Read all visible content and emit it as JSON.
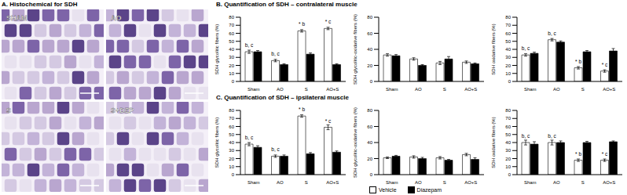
{
  "panel_a": {
    "title": "A. Histochemical for SDH",
    "images": [
      "SHAM",
      "AO",
      "S",
      "S+DZP"
    ]
  },
  "panel_b_title": "B. Quantification of SDH – contralateral muscle",
  "panel_c_title": "C. Quantification of SDH – ipsilateral muscle",
  "chart_data": [
    {
      "type": "bar",
      "y_label": "SDH glycolitic fibers (%)",
      "categories": [
        "Sham",
        "AO",
        "S",
        "AO+S"
      ],
      "series": [
        {
          "name": "Vehicle",
          "color": "#ffffff",
          "values": [
            37,
            26,
            63,
            66
          ],
          "errors": [
            2,
            1.5,
            1.5,
            1.5
          ]
        },
        {
          "name": "Diazepam",
          "color": "#000000",
          "values": [
            37,
            21,
            34,
            21
          ],
          "errors": [
            1.5,
            1,
            1.5,
            1
          ]
        }
      ],
      "ylim": [
        0,
        80
      ],
      "yticks": [
        0,
        10,
        20,
        30,
        40,
        50,
        60,
        70,
        80
      ],
      "legend": "bottom",
      "annotations": [
        {
          "category": "Sham",
          "series": "Vehicle",
          "text": "b, c"
        },
        {
          "category": "AO",
          "series": "Vehicle",
          "text": "b, c"
        },
        {
          "category": "S",
          "series": "Vehicle",
          "text": "* b"
        },
        {
          "category": "AO+S",
          "series": "Vehicle",
          "text": "* c"
        }
      ]
    },
    {
      "type": "bar",
      "y_label": "SDH glycolitic-oxidative fibers (%)",
      "categories": [
        "Sham",
        "AO",
        "S",
        "AO+S"
      ],
      "series": [
        {
          "name": "Vehicle",
          "color": "#ffffff",
          "values": [
            33,
            28,
            23,
            24
          ],
          "errors": [
            1.5,
            1.5,
            2,
            1.5
          ]
        },
        {
          "name": "Diazepam",
          "color": "#000000",
          "values": [
            32,
            20,
            28,
            22
          ],
          "errors": [
            1.5,
            1,
            3,
            1
          ]
        }
      ],
      "ylim": [
        0,
        80
      ],
      "yticks": [
        0,
        20,
        40,
        60,
        80
      ],
      "legend": "bottom",
      "annotations": []
    },
    {
      "type": "bar",
      "y_label": "SDH oxidative fibers (%)",
      "categories": [
        "Sham",
        "AO",
        "S",
        "AO+S"
      ],
      "series": [
        {
          "name": "Vehicle",
          "color": "#ffffff",
          "values": [
            33,
            52,
            17,
            13
          ],
          "errors": [
            1.5,
            1.5,
            1.5,
            1.5
          ]
        },
        {
          "name": "Diazepam",
          "color": "#000000",
          "values": [
            35,
            49,
            37,
            38
          ],
          "errors": [
            1.5,
            1.5,
            1.5,
            3
          ]
        }
      ],
      "ylim": [
        0,
        80
      ],
      "yticks": [
        0,
        10,
        20,
        30,
        40,
        50,
        60,
        70,
        80
      ],
      "legend": "bottom",
      "annotations": [
        {
          "category": "Sham",
          "series": "Vehicle",
          "text": "b, c"
        },
        {
          "category": "AO",
          "series": "Vehicle",
          "text": "b, c"
        },
        {
          "category": "S",
          "series": "Vehicle",
          "text": "* b"
        },
        {
          "category": "AO+S",
          "series": "Vehicle",
          "text": "* c"
        }
      ]
    },
    {
      "type": "bar",
      "y_label": "SDH glycolitic fibers (%)",
      "categories": [
        "Sham",
        "AO",
        "S",
        "AO+S"
      ],
      "series": [
        {
          "name": "Vehicle",
          "color": "#ffffff",
          "values": [
            38,
            23,
            73,
            59
          ],
          "errors": [
            2,
            1.5,
            1.5,
            3
          ]
        },
        {
          "name": "Diazepam",
          "color": "#000000",
          "values": [
            34,
            23,
            26,
            28
          ],
          "errors": [
            2,
            1.5,
            1.5,
            1.5
          ]
        }
      ],
      "ylim": [
        0,
        80
      ],
      "yticks": [
        0,
        10,
        20,
        30,
        40,
        50,
        60,
        70,
        80
      ],
      "legend": "bottom",
      "annotations": [
        {
          "category": "Sham",
          "series": "Vehicle",
          "text": "b, c"
        },
        {
          "category": "AO",
          "series": "Vehicle",
          "text": "b, c"
        },
        {
          "category": "S",
          "series": "Vehicle",
          "text": "* b"
        },
        {
          "category": "AO+S",
          "series": "Vehicle",
          "text": "* c"
        }
      ]
    },
    {
      "type": "bar",
      "y_label": "SDH glycolitic-oxidative fibers (%)",
      "categories": [
        "Sham",
        "AO",
        "S",
        "AO+S"
      ],
      "series": [
        {
          "name": "Vehicle",
          "color": "#ffffff",
          "values": [
            21,
            22,
            21,
            25
          ],
          "errors": [
            1,
            1.5,
            1.5,
            1.5
          ]
        },
        {
          "name": "Diazepam",
          "color": "#000000",
          "values": [
            23,
            20,
            18,
            19
          ],
          "errors": [
            1,
            1.5,
            1,
            2
          ]
        }
      ],
      "ylim": [
        0,
        80
      ],
      "yticks": [
        0,
        20,
        40,
        60,
        80
      ],
      "legend": "bottom",
      "annotations": []
    },
    {
      "type": "bar",
      "y_label": "SDH oxidative fibers (%)",
      "categories": [
        "Sham",
        "AO",
        "S",
        "AO+S"
      ],
      "series": [
        {
          "name": "Vehicle",
          "color": "#ffffff",
          "values": [
            40,
            40,
            18,
            18
          ],
          "errors": [
            3,
            3,
            1.5,
            1.5
          ]
        },
        {
          "name": "Diazepam",
          "color": "#000000",
          "values": [
            38,
            40,
            40,
            41
          ],
          "errors": [
            3,
            2,
            1.5,
            1
          ]
        }
      ],
      "ylim": [
        0,
        80
      ],
      "yticks": [
        0,
        10,
        20,
        30,
        40,
        50,
        60,
        70,
        80
      ],
      "legend": "bottom",
      "annotations": [
        {
          "category": "Sham",
          "series": "Vehicle",
          "text": "b, c"
        },
        {
          "category": "AO",
          "series": "Vehicle",
          "text": "b, c"
        },
        {
          "category": "S",
          "series": "Vehicle",
          "text": "* b"
        },
        {
          "category": "AO+S",
          "series": "Vehicle",
          "text": "* c"
        }
      ]
    }
  ]
}
